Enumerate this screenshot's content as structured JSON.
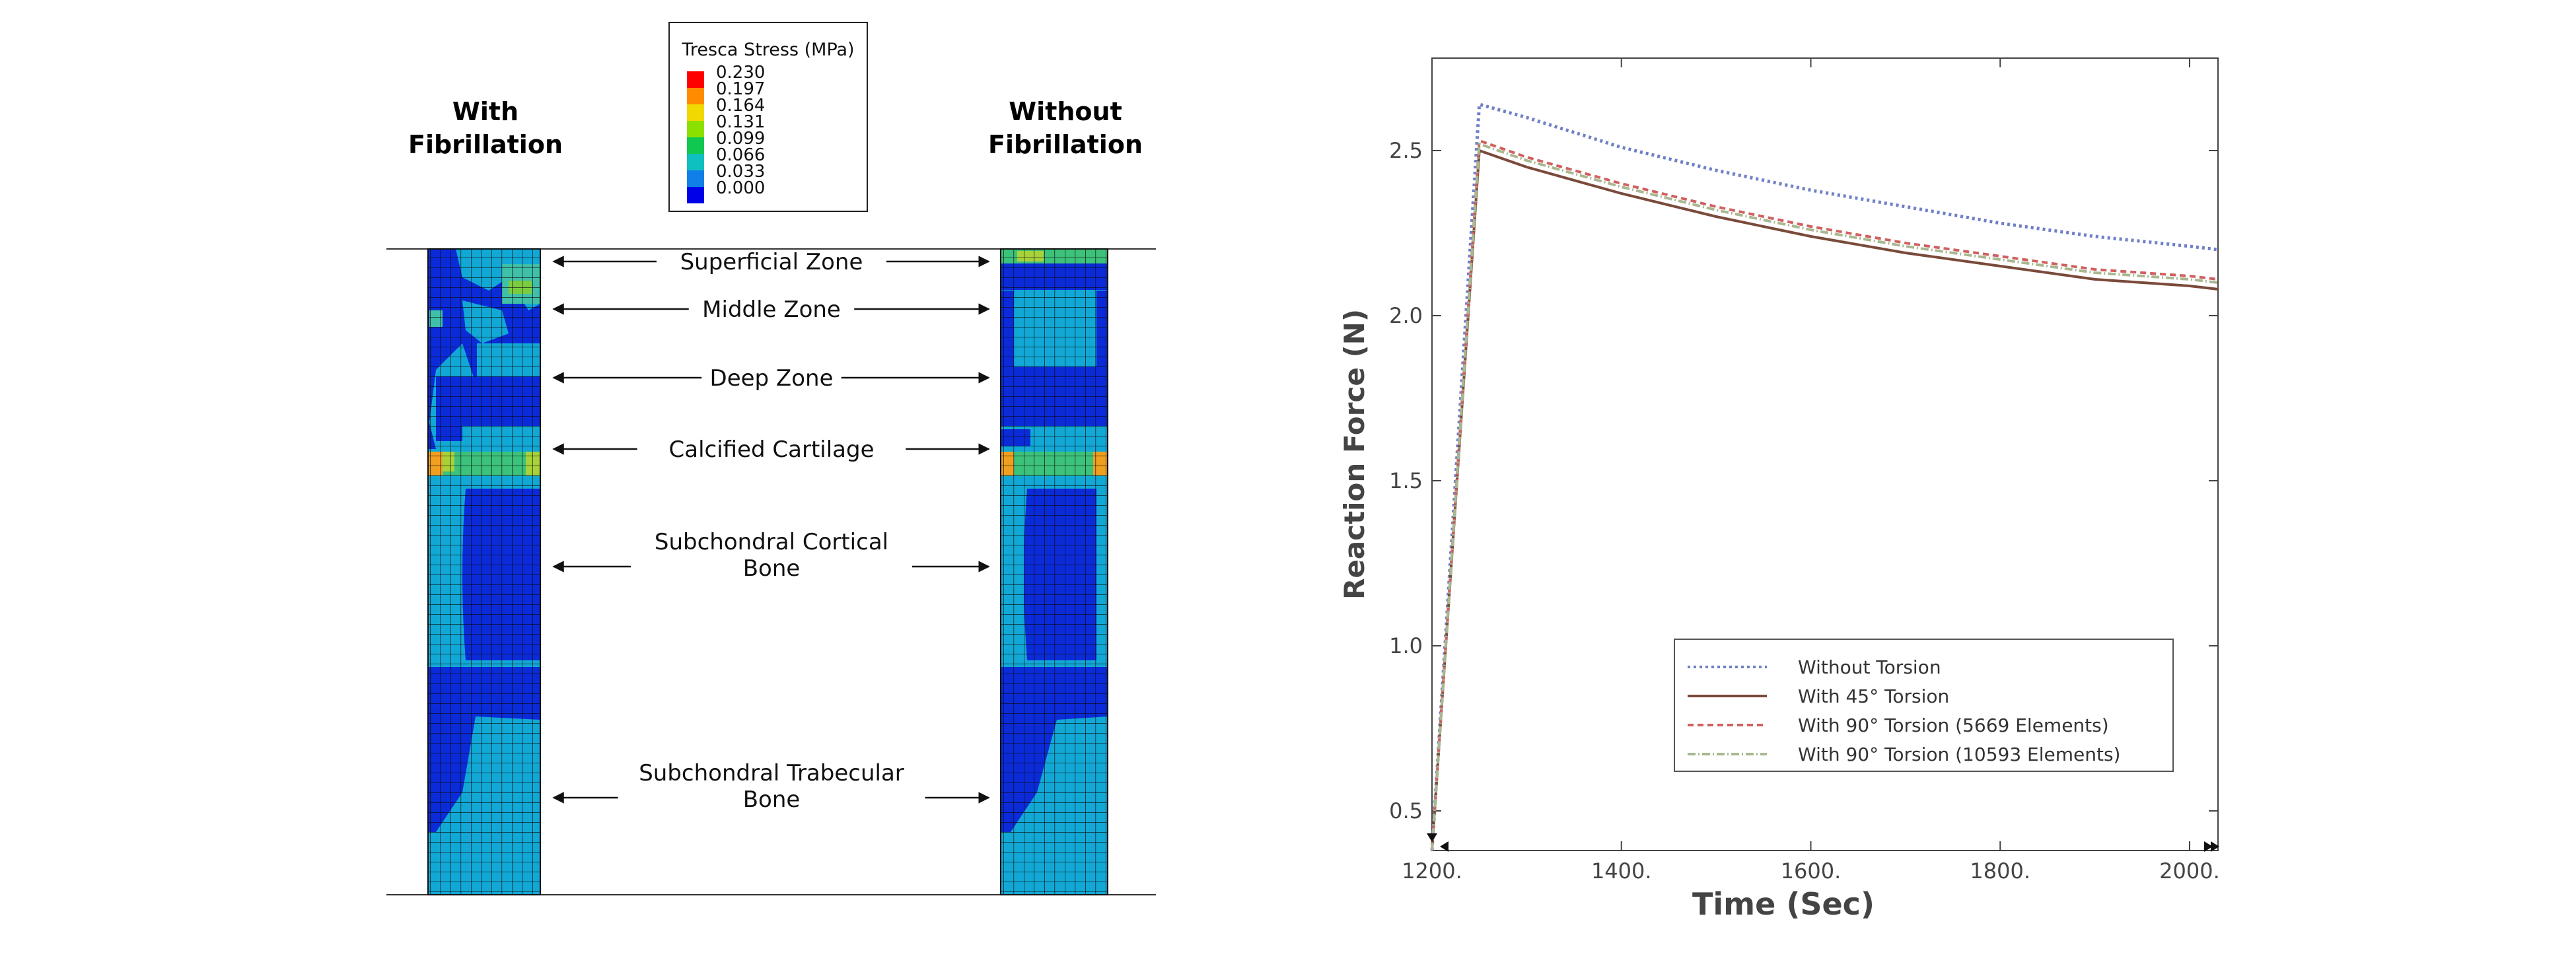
{
  "left_panel": {
    "colorbar": {
      "title": "Tresca Stress (MPa)",
      "levels": [
        "0.230",
        "0.197",
        "0.164",
        "0.131",
        "0.099",
        "0.066",
        "0.033",
        "0.000"
      ],
      "colors": [
        "#ff0000",
        "#ff8c00",
        "#f0d800",
        "#8ce000",
        "#10c850",
        "#10c0c0",
        "#1080e8",
        "#0000e8"
      ]
    },
    "left_heading": [
      "With",
      "Fibrillation"
    ],
    "right_heading": [
      "Without",
      "Fibrillation"
    ],
    "zones": [
      {
        "lines": [
          "Superficial Zone"
        ]
      },
      {
        "lines": [
          "Middle Zone"
        ]
      },
      {
        "lines": [
          "Deep Zone"
        ]
      },
      {
        "lines": [
          "Calcified Cartilage"
        ]
      },
      {
        "lines": [
          "Subchondral Cortical",
          "Bone"
        ]
      },
      {
        "lines": [
          "Subchondral Trabecular",
          "Bone"
        ]
      }
    ]
  },
  "chart_data": {
    "type": "line",
    "title": "",
    "xlabel": "Time (Sec)",
    "ylabel": "Reaction Force (N)",
    "xlim": [
      1200,
      2030
    ],
    "ylim": [
      0.38,
      2.78
    ],
    "xticks": [
      1200,
      1400,
      1600,
      1800,
      2000
    ],
    "xtick_labels": [
      "1200.",
      "1400.",
      "1600.",
      "1800.",
      "2000."
    ],
    "yticks": [
      0.5,
      1.0,
      1.5,
      2.0,
      2.5
    ],
    "ytick_labels": [
      "0.5",
      "1.0",
      "1.5",
      "2.0",
      "2.5"
    ],
    "grid": false,
    "legend_position": "bottom-right",
    "series": [
      {
        "name": "Without Torsion",
        "color": "#6f7fc8",
        "dash": "4,5",
        "points": [
          [
            1200,
            0.38
          ],
          [
            1250,
            2.64
          ],
          [
            1300,
            2.6
          ],
          [
            1400,
            2.51
          ],
          [
            1500,
            2.44
          ],
          [
            1600,
            2.38
          ],
          [
            1700,
            2.33
          ],
          [
            1800,
            2.28
          ],
          [
            1900,
            2.24
          ],
          [
            2000,
            2.21
          ],
          [
            2030,
            2.2
          ]
        ]
      },
      {
        "name": "With 45° Torsion",
        "color": "#7a4a3a",
        "dash": "",
        "points": [
          [
            1200,
            0.38
          ],
          [
            1250,
            2.5
          ],
          [
            1300,
            2.45
          ],
          [
            1400,
            2.37
          ],
          [
            1500,
            2.3
          ],
          [
            1600,
            2.24
          ],
          [
            1700,
            2.19
          ],
          [
            1800,
            2.15
          ],
          [
            1900,
            2.11
          ],
          [
            2000,
            2.09
          ],
          [
            2030,
            2.08
          ]
        ]
      },
      {
        "name": "With 90° Torsion (5669 Elements)",
        "color": "#d06060",
        "dash": "9,6",
        "points": [
          [
            1200,
            0.38
          ],
          [
            1250,
            2.53
          ],
          [
            1300,
            2.48
          ],
          [
            1400,
            2.4
          ],
          [
            1500,
            2.33
          ],
          [
            1600,
            2.27
          ],
          [
            1700,
            2.22
          ],
          [
            1800,
            2.18
          ],
          [
            1900,
            2.14
          ],
          [
            2000,
            2.12
          ],
          [
            2030,
            2.11
          ]
        ]
      },
      {
        "name": "With 90° Torsion (10593 Elements)",
        "color": "#a8b890",
        "dash": "12,4,2,4",
        "points": [
          [
            1200,
            0.38
          ],
          [
            1250,
            2.52
          ],
          [
            1300,
            2.47
          ],
          [
            1400,
            2.39
          ],
          [
            1500,
            2.32
          ],
          [
            1600,
            2.26
          ],
          [
            1700,
            2.21
          ],
          [
            1800,
            2.17
          ],
          [
            1900,
            2.13
          ],
          [
            2000,
            2.11
          ],
          [
            2030,
            2.1
          ]
        ]
      }
    ]
  }
}
